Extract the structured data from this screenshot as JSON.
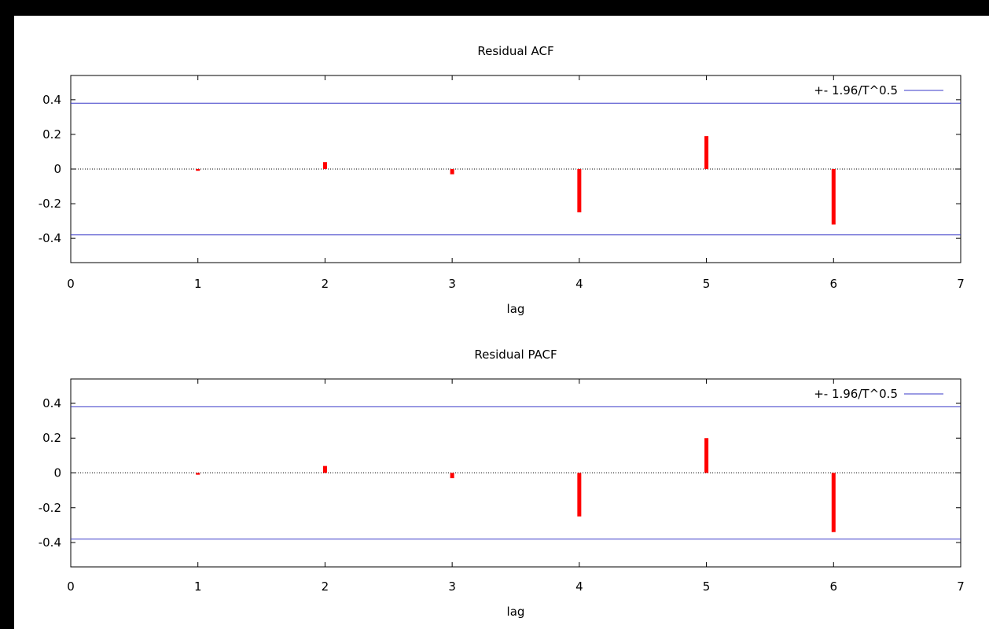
{
  "chart_data": [
    {
      "type": "bar",
      "title": "Residual ACF",
      "xlabel": "lag",
      "ylabel": "",
      "x": [
        1,
        2,
        3,
        4,
        5,
        6
      ],
      "values": [
        -0.01,
        0.04,
        -0.03,
        -0.25,
        0.19,
        -0.32
      ],
      "xlim": [
        0,
        7
      ],
      "ylim": [
        -0.54,
        0.54
      ],
      "xticks": [
        "0",
        "1",
        "2",
        "3",
        "4",
        "5",
        "6",
        "7"
      ],
      "yticks": [
        "0.4",
        "0.2",
        "0",
        "-0.2",
        "-0.4"
      ],
      "band": {
        "name": "+- 1.96/T^0.5",
        "upper": 0.38,
        "lower": -0.38
      },
      "legend_position": "top-right",
      "colors": {
        "bars": "#ff0000",
        "band": "#3a3ac8"
      }
    },
    {
      "type": "bar",
      "title": "Residual PACF",
      "xlabel": "lag",
      "ylabel": "",
      "x": [
        1,
        2,
        3,
        4,
        5,
        6
      ],
      "values": [
        -0.01,
        0.04,
        -0.03,
        -0.25,
        0.2,
        -0.34
      ],
      "xlim": [
        0,
        7
      ],
      "ylim": [
        -0.54,
        0.54
      ],
      "xticks": [
        "0",
        "1",
        "2",
        "3",
        "4",
        "5",
        "6",
        "7"
      ],
      "yticks": [
        "0.4",
        "0.2",
        "0",
        "-0.2",
        "-0.4"
      ],
      "band": {
        "name": "+- 1.96/T^0.5",
        "upper": 0.38,
        "lower": -0.38
      },
      "legend_position": "top-right",
      "colors": {
        "bars": "#ff0000",
        "band": "#3a3ac8"
      }
    }
  ]
}
